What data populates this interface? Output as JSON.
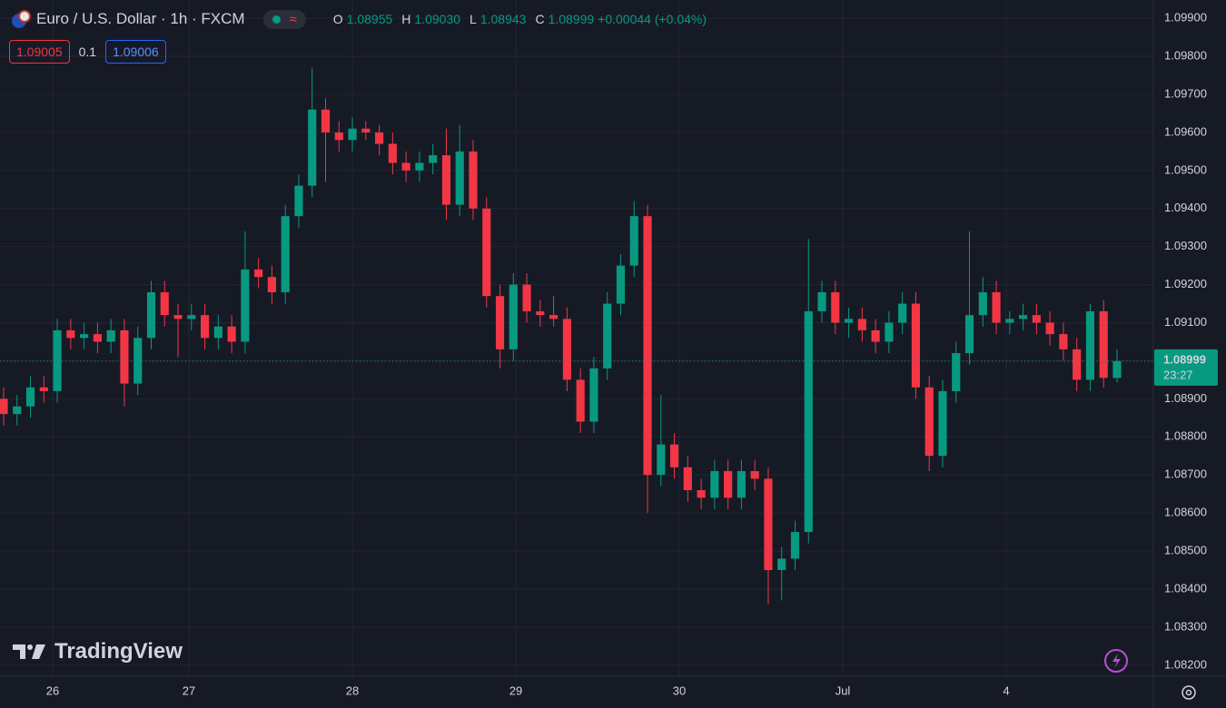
{
  "header": {
    "symbol": "Euro / U.S. Dollar · 1h · FXCM",
    "indicator": "≈",
    "ohlc": [
      {
        "key": "O",
        "value": "1.08955"
      },
      {
        "key": "H",
        "value": "1.09030"
      },
      {
        "key": "L",
        "value": "1.08943"
      },
      {
        "key": "C",
        "value": "1.08999"
      },
      {
        "key": "",
        "value": "+0.00044 (+0.04%)"
      }
    ],
    "sell": "1.09005",
    "spread": "0.1",
    "buy": "1.09006"
  },
  "price_label": "1.08999",
  "countdown": "23:27",
  "brand": "TradingView",
  "chart_data": {
    "type": "candlestick",
    "up_color": "#089981",
    "down_color": "#f23645",
    "grid": true,
    "x_labels": [
      "26",
      "27",
      "28",
      "29",
      "30",
      "Jul",
      "4"
    ],
    "ylim": [
      1.08171,
      1.09948
    ],
    "yticks": [
      {
        "value": 1.082,
        "label": "1.08200"
      },
      {
        "value": 1.083,
        "label": "1.08300"
      },
      {
        "value": 1.084,
        "label": "1.08400"
      },
      {
        "value": 1.085,
        "label": "1.08500"
      },
      {
        "value": 1.086,
        "label": "1.08600"
      },
      {
        "value": 1.087,
        "label": "1.08700"
      },
      {
        "value": 1.088,
        "label": "1.08800"
      },
      {
        "value": 1.089,
        "label": "1.08900"
      },
      {
        "value": 1.09,
        "label": "1.09000"
      },
      {
        "value": 1.091,
        "label": "1.09100"
      },
      {
        "value": 1.092,
        "label": "1.09200"
      },
      {
        "value": 1.093,
        "label": "1.09300"
      },
      {
        "value": 1.094,
        "label": "1.09400"
      },
      {
        "value": 1.095,
        "label": "1.09500"
      },
      {
        "value": 1.096,
        "label": "1.09600"
      },
      {
        "value": 1.097,
        "label": "1.09700"
      },
      {
        "value": 1.098,
        "label": "1.09800"
      },
      {
        "value": 1.099,
        "label": "1.09900"
      }
    ],
    "candles": [
      [
        1.089,
        1.0893,
        1.0883,
        1.0886
      ],
      [
        1.0886,
        1.0891,
        1.0883,
        1.0888
      ],
      [
        1.0888,
        1.0896,
        1.0885,
        1.0893
      ],
      [
        1.0893,
        1.0896,
        1.0889,
        1.0892
      ],
      [
        1.0892,
        1.0911,
        1.0889,
        1.0908
      ],
      [
        1.0908,
        1.0911,
        1.0903,
        1.0906
      ],
      [
        1.0906,
        1.091,
        1.0903,
        1.0907
      ],
      [
        1.0907,
        1.091,
        1.0902,
        1.0905
      ],
      [
        1.0905,
        1.0911,
        1.0902,
        1.0908
      ],
      [
        1.0908,
        1.0911,
        1.0888,
        1.0894
      ],
      [
        1.0894,
        1.0909,
        1.0891,
        1.0906
      ],
      [
        1.0906,
        1.0921,
        1.0903,
        1.0918
      ],
      [
        1.0918,
        1.0921,
        1.0909,
        1.0912
      ],
      [
        1.0912,
        1.0915,
        1.0901,
        1.0911
      ],
      [
        1.0911,
        1.0915,
        1.0908,
        1.0912
      ],
      [
        1.0912,
        1.0915,
        1.0903,
        1.0906
      ],
      [
        1.0906,
        1.0912,
        1.0903,
        1.0909
      ],
      [
        1.0909,
        1.0912,
        1.0902,
        1.0905
      ],
      [
        1.0905,
        1.0934,
        1.0902,
        1.0924
      ],
      [
        1.0924,
        1.0927,
        1.0919,
        1.0922
      ],
      [
        1.0922,
        1.0925,
        1.0915,
        1.0918
      ],
      [
        1.0918,
        1.0941,
        1.0915,
        1.0938
      ],
      [
        1.0938,
        1.0949,
        1.0935,
        1.0946
      ],
      [
        1.0946,
        1.0977,
        1.0943,
        1.0966
      ],
      [
        1.0966,
        1.0969,
        1.0947,
        1.096
      ],
      [
        1.096,
        1.0963,
        1.0955,
        1.0958
      ],
      [
        1.0958,
        1.0964,
        1.0955,
        1.0961
      ],
      [
        1.0961,
        1.0963,
        1.0958,
        1.096
      ],
      [
        1.096,
        1.0962,
        1.0954,
        1.0957
      ],
      [
        1.0957,
        1.096,
        1.0949,
        1.0952
      ],
      [
        1.0952,
        1.0955,
        1.0947,
        1.095
      ],
      [
        1.095,
        1.0955,
        1.0947,
        1.0952
      ],
      [
        1.0952,
        1.0957,
        1.0949,
        1.0954
      ],
      [
        1.0954,
        1.0961,
        1.0937,
        1.0941
      ],
      [
        1.0941,
        1.0962,
        1.0938,
        1.0955
      ],
      [
        1.0955,
        1.0958,
        1.0937,
        1.094
      ],
      [
        1.094,
        1.0943,
        1.0914,
        1.0917
      ],
      [
        1.0917,
        1.092,
        1.0898,
        1.0903
      ],
      [
        1.0903,
        1.0923,
        1.09,
        1.092
      ],
      [
        1.092,
        1.0923,
        1.091,
        1.0913
      ],
      [
        1.0913,
        1.0916,
        1.0909,
        1.0912
      ],
      [
        1.0912,
        1.0917,
        1.0909,
        1.0911
      ],
      [
        1.0911,
        1.0914,
        1.0892,
        1.0895
      ],
      [
        1.0895,
        1.0898,
        1.0881,
        1.0884
      ],
      [
        1.0884,
        1.0901,
        1.0881,
        1.0898
      ],
      [
        1.0898,
        1.0918,
        1.0895,
        1.0915
      ],
      [
        1.0915,
        1.0928,
        1.0912,
        1.0925
      ],
      [
        1.0925,
        1.0942,
        1.0922,
        1.0938
      ],
      [
        1.0938,
        1.0941,
        1.086,
        1.087
      ],
      [
        1.087,
        1.0891,
        1.0867,
        1.0878
      ],
      [
        1.0878,
        1.0881,
        1.0869,
        1.0872
      ],
      [
        1.0872,
        1.0875,
        1.0863,
        1.0866
      ],
      [
        1.0866,
        1.0869,
        1.0861,
        1.0864
      ],
      [
        1.0864,
        1.0874,
        1.0861,
        1.0871
      ],
      [
        1.0871,
        1.0874,
        1.0861,
        1.0864
      ],
      [
        1.0864,
        1.0874,
        1.0861,
        1.0871
      ],
      [
        1.0871,
        1.0874,
        1.0866,
        1.0869
      ],
      [
        1.0869,
        1.0872,
        1.0836,
        1.0845
      ],
      [
        1.0845,
        1.0851,
        1.0837,
        1.0848
      ],
      [
        1.0848,
        1.0858,
        1.0845,
        1.0855
      ],
      [
        1.0855,
        1.0932,
        1.0852,
        1.0913
      ],
      [
        1.0913,
        1.0921,
        1.091,
        1.0918
      ],
      [
        1.0918,
        1.0921,
        1.0907,
        1.091
      ],
      [
        1.091,
        1.0914,
        1.0906,
        1.0911
      ],
      [
        1.0911,
        1.0914,
        1.0905,
        1.0908
      ],
      [
        1.0908,
        1.0911,
        1.0902,
        1.0905
      ],
      [
        1.0905,
        1.0913,
        1.0902,
        1.091
      ],
      [
        1.091,
        1.0918,
        1.0907,
        1.0915
      ],
      [
        1.0915,
        1.0918,
        1.089,
        1.0893
      ],
      [
        1.0893,
        1.0896,
        1.0871,
        1.0875
      ],
      [
        1.0875,
        1.0895,
        1.0872,
        1.0892
      ],
      [
        1.0892,
        1.0905,
        1.0889,
        1.0902
      ],
      [
        1.0902,
        1.0934,
        1.0899,
        1.0912
      ],
      [
        1.0912,
        1.0922,
        1.0909,
        1.0918
      ],
      [
        1.0918,
        1.0921,
        1.0907,
        1.091
      ],
      [
        1.091,
        1.0913,
        1.0907,
        1.0911
      ],
      [
        1.0911,
        1.0915,
        1.0908,
        1.0912
      ],
      [
        1.0912,
        1.0915,
        1.0907,
        1.091
      ],
      [
        1.091,
        1.0913,
        1.0904,
        1.0907
      ],
      [
        1.0907,
        1.091,
        1.09,
        1.0903
      ],
      [
        1.0903,
        1.0906,
        1.0892,
        1.0895
      ],
      [
        1.0895,
        1.0915,
        1.0892,
        1.0913
      ],
      [
        1.0913,
        1.0916,
        1.0893,
        1.08955
      ],
      [
        1.08955,
        1.0903,
        1.08943,
        1.08999
      ]
    ]
  }
}
